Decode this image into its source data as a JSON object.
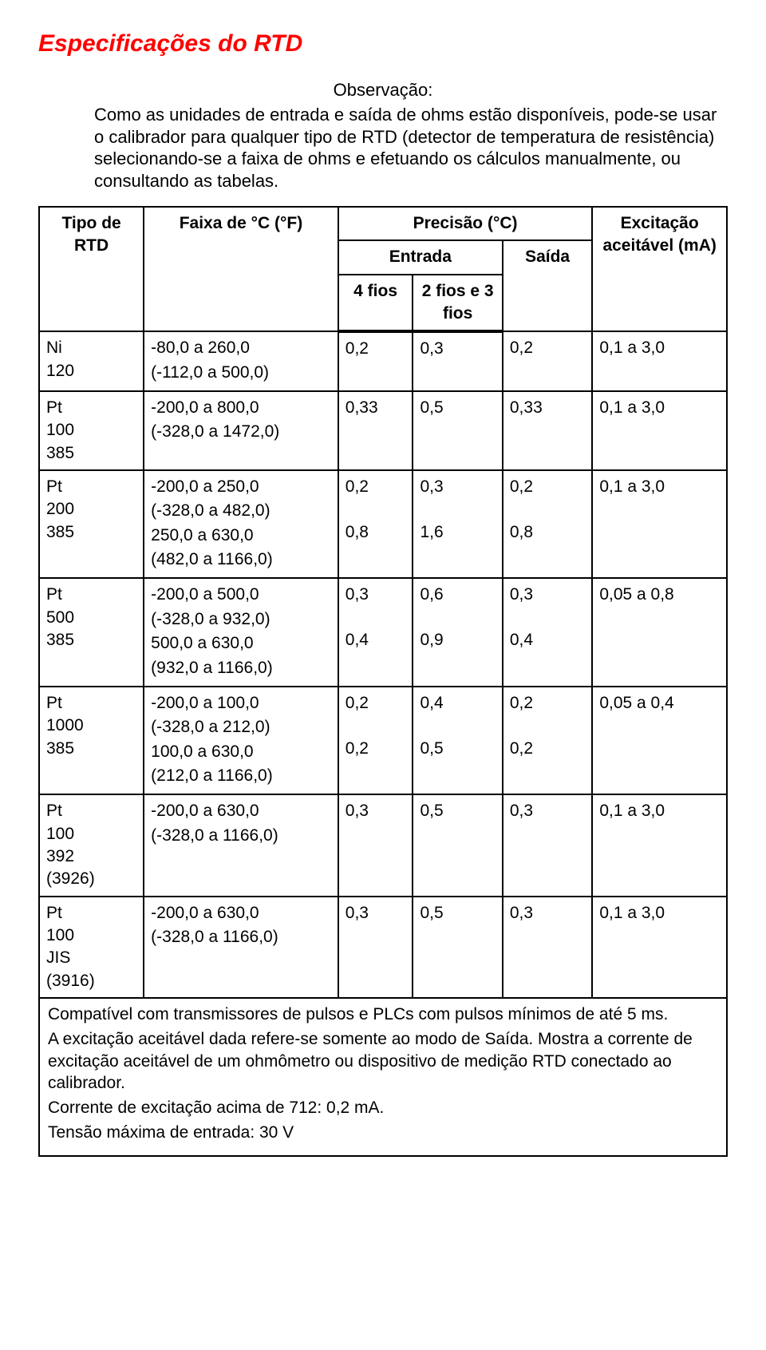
{
  "colors": {
    "title": "#ff0000",
    "text": "#000000",
    "border": "#000000",
    "background": "#ffffff"
  },
  "title": "Especificações do RTD",
  "observation_label": "Observação:",
  "intro_text": "Como as unidades de entrada e saída de ohms estão disponíveis, pode-se usar o calibrador para qualquer tipo de RTD (detector de temperatura de resistência) selecionando-se a faixa de ohms e efetuando os cálculos manualmente, ou consultando as tabelas.",
  "headers": {
    "precisao": "Precisão (°C)",
    "entrada": "Entrada",
    "tipo": "Tipo de RTD",
    "faixa": "Faixa de °C (°F)",
    "fios4": "4 fios",
    "fios23": "2 fios e 3 fios",
    "saida": "Saída",
    "excitacao": "Excitação aceitável (mA)"
  },
  "rows": [
    {
      "tipo": "Ni 120",
      "ranges": [
        "-80,0 a 260,0",
        "(-112,0 a 500,0)"
      ],
      "fios4": [
        "0,2"
      ],
      "fios23": [
        "0,3"
      ],
      "saida": [
        "0,2"
      ],
      "exc": "0,1 a 3,0"
    },
    {
      "tipo": "Pt 100 385",
      "ranges": [
        "-200,0 a 800,0",
        "(-328,0 a 1472,0)"
      ],
      "fios4": [
        "0,33"
      ],
      "fios23": [
        "0,5"
      ],
      "saida": [
        "0,33"
      ],
      "exc": "0,1 a 3,0"
    },
    {
      "tipo": "Pt 200 385",
      "ranges": [
        "-200,0 a 250,0",
        "(-328,0 a 482,0)",
        "250,0 a 630,0",
        "(482,0 a 1166,0)"
      ],
      "fios4": [
        "0,2",
        "",
        "0,8"
      ],
      "fios23": [
        "0,3",
        "",
        "1,6"
      ],
      "saida": [
        "0,2",
        "",
        "0,8"
      ],
      "exc": "0,1 a 3,0"
    },
    {
      "tipo": "Pt 500 385",
      "ranges": [
        "-200,0 a 500,0",
        "(-328,0 a 932,0)",
        "500,0 a 630,0",
        "(932,0 a 1166,0)"
      ],
      "fios4": [
        "0,3",
        "",
        "0,4"
      ],
      "fios23": [
        "0,6",
        "",
        "0,9"
      ],
      "saida": [
        "0,3",
        "",
        "0,4"
      ],
      "exc": "0,05 a 0,8"
    },
    {
      "tipo": "Pt 1000 385",
      "ranges": [
        "-200,0 a 100,0",
        "(-328,0 a 212,0)",
        "100,0 a 630,0",
        "(212,0 a 1166,0)"
      ],
      "fios4": [
        "0,2",
        "",
        "0,2"
      ],
      "fios23": [
        "0,4",
        "",
        "0,5"
      ],
      "saida": [
        "0,2",
        "",
        "0,2"
      ],
      "exc": "0,05 a 0,4"
    },
    {
      "tipo": "Pt 100 392 (3926)",
      "ranges": [
        "-200,0 a 630,0",
        "(-328,0 a 1166,0)"
      ],
      "fios4": [
        "0,3"
      ],
      "fios23": [
        "0,5"
      ],
      "saida": [
        "0,3"
      ],
      "exc": "0,1 a 3,0"
    },
    {
      "tipo": "Pt 100 JIS (3916)",
      "ranges": [
        "-200,0 a 630,0",
        "(-328,0 a 1166,0)"
      ],
      "fios4": [
        "0,3"
      ],
      "fios23": [
        "0,5"
      ],
      "saida": [
        "0,3"
      ],
      "exc": "0,1 a 3,0"
    }
  ],
  "notes": [
    "Compatível com transmissores de  pulsos e PLCs com pulsos mínimos de até 5 ms.",
    "A excitação aceitável dada refere-se somente ao modo de Saída. Mostra a corrente de excitação aceitável de um ohmômetro ou dispositivo de medição RTD conectado ao calibrador.",
    "Corrente de excitação acima de 712: 0,2 mA.",
    "Tensão máxima de entrada: 30 V"
  ]
}
